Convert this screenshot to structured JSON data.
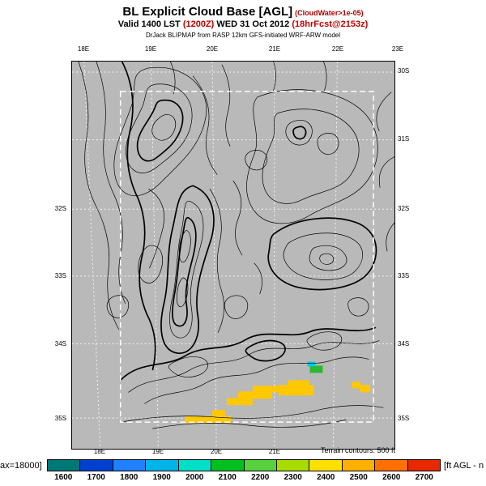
{
  "header": {
    "title": "BL Explicit Cloud Base [AGL]",
    "qualifier": "(CloudWater>1e-05)",
    "valid_prefix": "Valid 1400 LST ",
    "valid_zulu": "(1200Z)",
    "valid_date": " WED 31 Oct 2012 ",
    "forecast_tag": "(18hrFcst@2153z)",
    "model_credit": "DrJack BLIPMAP from RASP 12km GFS-initiated WRF-ARW model"
  },
  "map": {
    "background_color": "#b9b9b9",
    "top_axis": [
      "18E",
      "19E",
      "20E",
      "21E",
      "22E",
      "23E"
    ],
    "bottom_axis": [
      "18E",
      "19E",
      "20E",
      "21E"
    ],
    "left_axis": [
      "32S",
      "33S",
      "34S",
      "35S"
    ],
    "right_axis": [
      "30S",
      "31S",
      "32S",
      "33S",
      "34S",
      "35S"
    ],
    "terrain_note": "Terrain contours: 500 ft",
    "patch_colors": {
      "cloud_yellow": "#ffc800",
      "cloud_green": "#2db82d",
      "cloud_cyan": "#00c8e6"
    }
  },
  "colorbar": {
    "max_label": "ax=18000]",
    "unit_label": "[ft AGL - n",
    "ticks": [
      "1600",
      "1700",
      "1800",
      "1900",
      "2000",
      "2100",
      "2200",
      "2300",
      "2400",
      "2500",
      "2600",
      "2700"
    ],
    "colors": [
      "#007878",
      "#0040d0",
      "#2080ff",
      "#00b4e8",
      "#00e0c8",
      "#00c020",
      "#58d040",
      "#a8dc00",
      "#ffe000",
      "#ffb000",
      "#ff7000",
      "#e82800"
    ]
  }
}
